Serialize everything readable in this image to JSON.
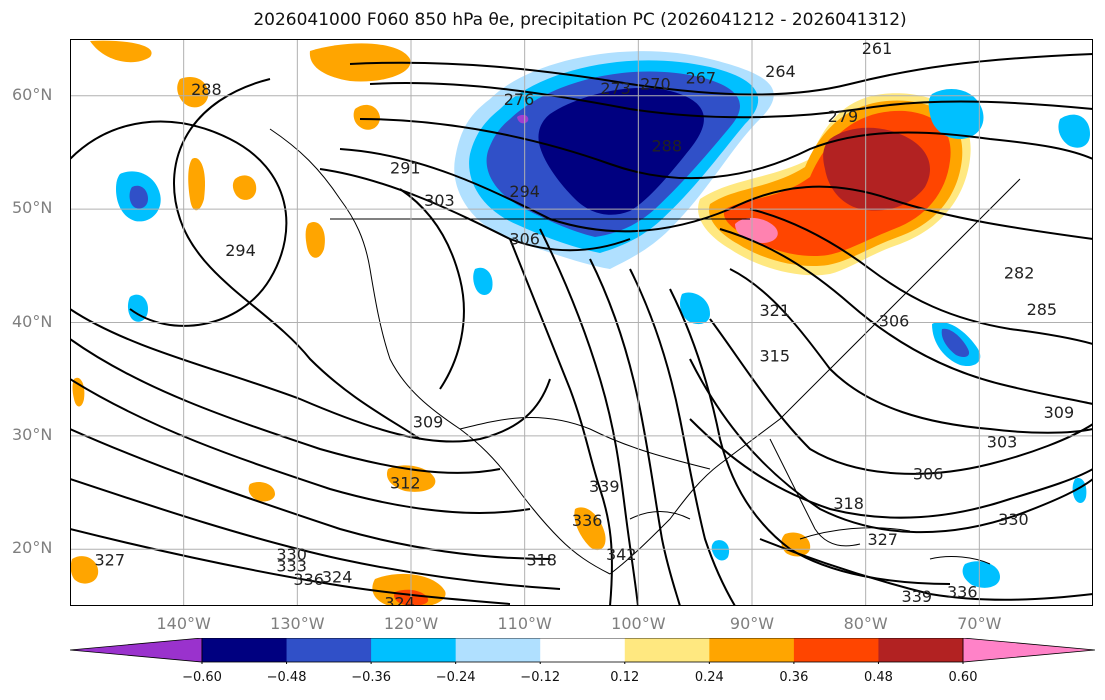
{
  "title": "2026041000 F060 850 hPa θe, precipitation PC (2026041212 - 2026041312)",
  "map": {
    "projection": "plate-carree",
    "lon_range": [
      -150,
      -60
    ],
    "lat_range": [
      15,
      65
    ],
    "grid": true,
    "lat_ticks": [
      {
        "value": 60,
        "label": "60°N"
      },
      {
        "value": 50,
        "label": "50°N"
      },
      {
        "value": 40,
        "label": "40°N"
      },
      {
        "value": 30,
        "label": "30°N"
      },
      {
        "value": 20,
        "label": "20°N"
      }
    ],
    "lon_ticks": [
      {
        "value": -140,
        "label": "140°W"
      },
      {
        "value": -130,
        "label": "130°W"
      },
      {
        "value": -120,
        "label": "120°W"
      },
      {
        "value": -110,
        "label": "110°W"
      },
      {
        "value": -100,
        "label": "100°W"
      },
      {
        "value": -90,
        "label": "90°W"
      },
      {
        "value": -80,
        "label": "80°W"
      },
      {
        "value": -70,
        "label": "70°W"
      }
    ],
    "contour_labels": [
      {
        "text": "261",
        "lon": -79.0,
        "lat": 64.1
      },
      {
        "text": "264",
        "lon": -87.5,
        "lat": 62.1
      },
      {
        "text": "267",
        "lon": -94.5,
        "lat": 61.5
      },
      {
        "text": "270",
        "lon": -98.5,
        "lat": 61.0
      },
      {
        "text": "273",
        "lon": -102.0,
        "lat": 60.6
      },
      {
        "text": "276",
        "lon": -110.5,
        "lat": 59.6
      },
      {
        "text": "279",
        "lon": -82.0,
        "lat": 58.1
      },
      {
        "text": "288",
        "lon": -138.0,
        "lat": 60.5
      },
      {
        "text": "288",
        "lon": -97.5,
        "lat": 55.5
      },
      {
        "text": "291",
        "lon": -120.5,
        "lat": 53.6
      },
      {
        "text": "294",
        "lon": -110.0,
        "lat": 51.5
      },
      {
        "text": "294",
        "lon": -135.0,
        "lat": 46.3
      },
      {
        "text": "303",
        "lon": -117.5,
        "lat": 50.7
      },
      {
        "text": "306",
        "lon": -110.0,
        "lat": 47.3
      },
      {
        "text": "285",
        "lon": -64.5,
        "lat": 41.1
      },
      {
        "text": "282",
        "lon": -66.5,
        "lat": 44.3
      },
      {
        "text": "321",
        "lon": -88.0,
        "lat": 41.0
      },
      {
        "text": "315",
        "lon": -88.0,
        "lat": 37.0
      },
      {
        "text": "306",
        "lon": -77.5,
        "lat": 40.1
      },
      {
        "text": "309",
        "lon": -118.5,
        "lat": 31.2
      },
      {
        "text": "309",
        "lon": -63.0,
        "lat": 32.0
      },
      {
        "text": "303",
        "lon": -68.0,
        "lat": 29.4
      },
      {
        "text": "306",
        "lon": -74.5,
        "lat": 26.6
      },
      {
        "text": "312",
        "lon": -120.5,
        "lat": 25.8
      },
      {
        "text": "318",
        "lon": -81.5,
        "lat": 24.0
      },
      {
        "text": "330",
        "lon": -67.0,
        "lat": 22.6
      },
      {
        "text": "327",
        "lon": -78.5,
        "lat": 20.8
      },
      {
        "text": "339",
        "lon": -103.0,
        "lat": 25.5
      },
      {
        "text": "336",
        "lon": -104.5,
        "lat": 22.5
      },
      {
        "text": "342",
        "lon": -101.5,
        "lat": 19.5
      },
      {
        "text": "318",
        "lon": -108.5,
        "lat": 19.0
      },
      {
        "text": "327",
        "lon": -146.5,
        "lat": 19.0
      },
      {
        "text": "330",
        "lon": -130.5,
        "lat": 19.5
      },
      {
        "text": "333",
        "lon": -130.5,
        "lat": 18.5
      },
      {
        "text": "336",
        "lon": -129.0,
        "lat": 17.3
      },
      {
        "text": "324",
        "lon": -126.5,
        "lat": 17.5
      },
      {
        "text": "324",
        "lon": -121.0,
        "lat": 15.2
      },
      {
        "text": "339",
        "lon": -75.5,
        "lat": 15.8
      },
      {
        "text": "336",
        "lon": -71.5,
        "lat": 16.2
      }
    ]
  },
  "colorbar": {
    "boundaries": [
      -0.72,
      -0.6,
      -0.48,
      -0.36,
      -0.24,
      -0.12,
      0.12,
      0.24,
      0.36,
      0.48,
      0.6,
      0.72
    ],
    "colors": [
      "#a040d0",
      "#000080",
      "#3050c8",
      "#00c0ff",
      "#b0e0ff",
      "#ffffff",
      "#ffe880",
      "#ffa500",
      "#ff4500",
      "#b22222",
      "#ff82b0"
    ],
    "extend_min_color": "#9a32cd",
    "extend_max_color": "#ff82c8",
    "tick_labels": [
      "−0.60",
      "−0.48",
      "−0.36",
      "−0.24",
      "−0.12",
      "0.12",
      "0.24",
      "0.36",
      "0.48",
      "0.60"
    ]
  }
}
